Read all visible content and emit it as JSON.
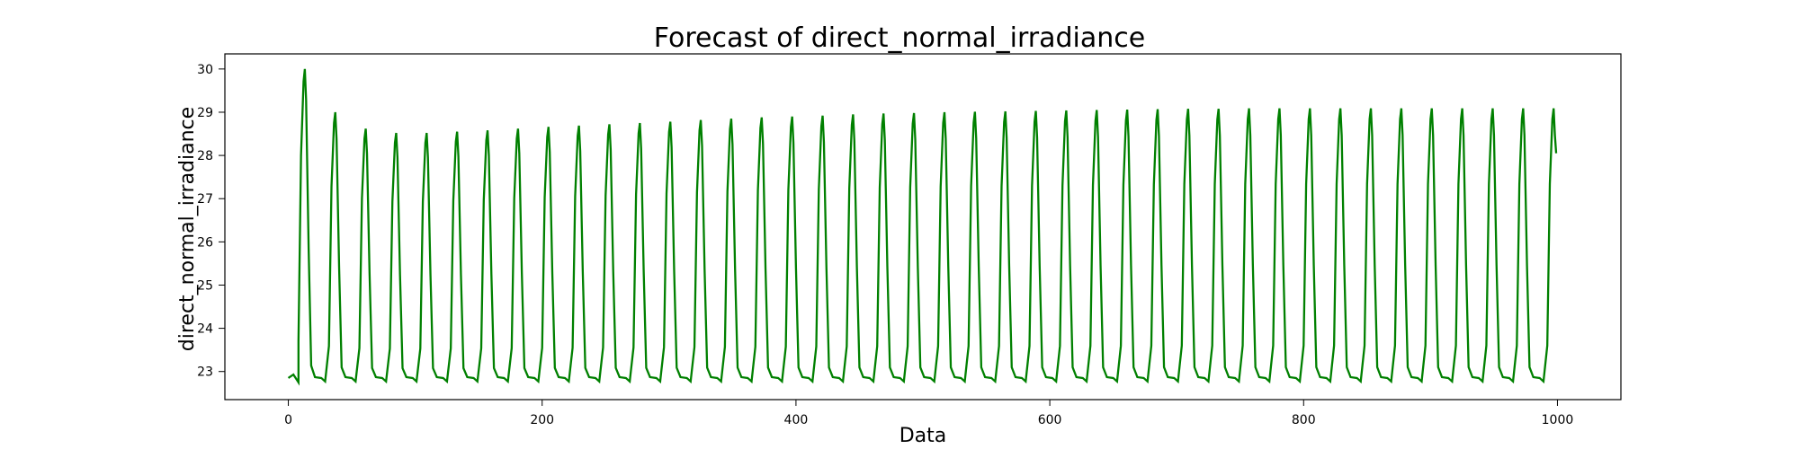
{
  "chart_data": {
    "type": "line",
    "title": "Forecast of direct_normal_irradiance",
    "xlabel": "Data",
    "ylabel": "direct_normal_irradiance",
    "xlim": [
      -50,
      1050
    ],
    "ylim": [
      22.35,
      30.35
    ],
    "xticks": [
      0,
      200,
      400,
      600,
      800,
      1000
    ],
    "yticks": [
      23,
      24,
      25,
      26,
      27,
      28,
      29,
      30
    ],
    "grid": false,
    "legend": "none",
    "series": [
      {
        "color": "#008000",
        "baseline": 22.85,
        "period": 24,
        "first_peak_x": 13,
        "peak_values": [
          30.0,
          29.0,
          28.62,
          28.52,
          28.52,
          28.55,
          28.58,
          28.62,
          28.66,
          28.69,
          28.72,
          28.75,
          28.78,
          28.82,
          28.85,
          28.88,
          28.9,
          28.92,
          28.95,
          28.97,
          28.98,
          29.0,
          29.01,
          29.02,
          29.03,
          29.04,
          29.05,
          29.06,
          29.07,
          29.08,
          29.08,
          29.09,
          29.09,
          29.09,
          29.09,
          29.09,
          29.09,
          29.09,
          29.09,
          29.09,
          29.09,
          29.09
        ],
        "x_end": 999,
        "y_end": 28.05
      }
    ]
  },
  "colors": {
    "line": "#008000",
    "axes": "#000000",
    "background": "#ffffff"
  }
}
